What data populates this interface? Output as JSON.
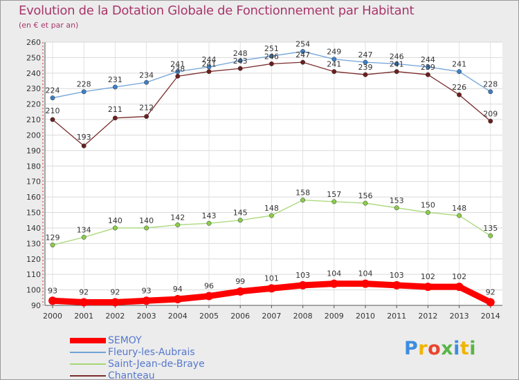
{
  "chart_data": {
    "type": "line",
    "title": "Evolution de la Dotation Globale de Fonctionnement par Habitant",
    "subtitle": "(en € et par an)",
    "xlabel": "",
    "ylabel": "",
    "categories": [
      "2000",
      "2001",
      "2002",
      "2003",
      "2004",
      "2005",
      "2006",
      "2007",
      "2008",
      "2009",
      "2010",
      "2011",
      "2012",
      "2013",
      "2014"
    ],
    "ylim": [
      90,
      260
    ],
    "yticks": [
      90,
      100,
      110,
      120,
      130,
      140,
      150,
      160,
      170,
      180,
      190,
      200,
      210,
      220,
      230,
      240,
      250,
      260
    ],
    "grid": true,
    "legend_position": "bottom-left",
    "series": [
      {
        "name": "SEMOY",
        "color": "#ff0000",
        "emphasis": true,
        "values": [
          93,
          92,
          92,
          93,
          94,
          96,
          99,
          101,
          103,
          104,
          104,
          103,
          102,
          102,
          92
        ]
      },
      {
        "name": "Fleury-les-Aubrais",
        "color": "#6fa1d8",
        "marker_color": "#3d7fc4",
        "emphasis": false,
        "values": [
          224,
          228,
          231,
          234,
          241,
          244,
          248,
          251,
          254,
          249,
          247,
          246,
          244,
          241,
          228
        ]
      },
      {
        "name": "Saint-Jean-de-Braye",
        "color": "#a7d774",
        "marker_color": "#8acd4a",
        "emphasis": false,
        "values": [
          129,
          134,
          140,
          140,
          142,
          143,
          145,
          148,
          158,
          157,
          156,
          153,
          150,
          148,
          135
        ]
      },
      {
        "name": "Chanteau",
        "color": "#7a2b2b",
        "marker_color": "#6a1f1f",
        "emphasis": false,
        "values": [
          210,
          193,
          211,
          212,
          238,
          241,
          243,
          246,
          247,
          241,
          239,
          241,
          239,
          226,
          209
        ]
      }
    ]
  },
  "branding": {
    "letters": [
      "P",
      "r",
      "o",
      "x",
      "i",
      "t",
      "i"
    ],
    "colors": [
      "#3c8de0",
      "#f0b400",
      "#e8452c",
      "#59b548",
      "#3c8de0",
      "#f0b400",
      "#59b548"
    ]
  }
}
